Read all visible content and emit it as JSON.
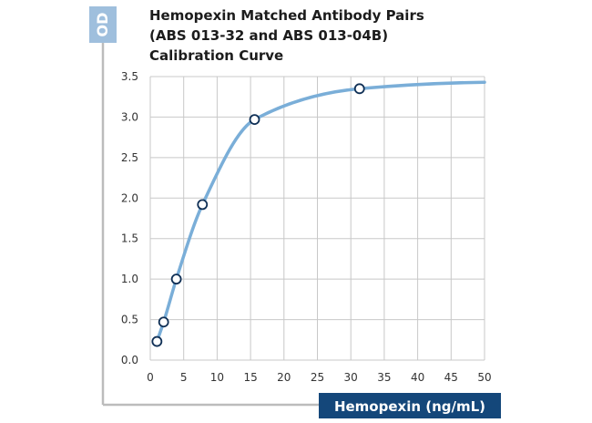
{
  "colors": {
    "ylabel_box": "#9fbfdd",
    "xlabel_box": "#14477a",
    "curve": "#7aaed8",
    "marker_stroke": "#0f2f55",
    "grid": "#c8c8c8",
    "frame": "#bcbcbc"
  },
  "chart_data": {
    "type": "scatter",
    "title": "Hemopexin Matched Antibody Pairs (ABS 013-32 and ABS 013-04B) Calibration Curve",
    "title_lines": [
      "Hemopexin Matched Antibody Pairs",
      "(ABS 013-32 and ABS 013-04B)",
      "Calibration Curve"
    ],
    "xlabel": "Hemopexin (ng/mL)",
    "ylabel": "OD",
    "xlim": [
      0,
      50
    ],
    "ylim": [
      0,
      3.5
    ],
    "x_ticks": [
      0,
      5,
      10,
      15,
      20,
      25,
      30,
      35,
      40,
      45,
      50
    ],
    "y_ticks": [
      0,
      0.5,
      1.0,
      1.5,
      2.0,
      2.5,
      3.0,
      3.5
    ],
    "y_tick_labels": [
      "0.0",
      "0.5",
      "1.0",
      "1.5",
      "2.0",
      "2.5",
      "3.0",
      "3.5"
    ],
    "x_tick_labels": [
      "0",
      "5",
      "10",
      "15",
      "20",
      "25",
      "30",
      "35",
      "40",
      "45",
      "50"
    ],
    "grid": true,
    "series": [
      {
        "points": [
          {
            "x": 1.0,
            "y": 0.23
          },
          {
            "x": 2.0,
            "y": 0.47
          },
          {
            "x": 3.9,
            "y": 1.0
          },
          {
            "x": 7.8,
            "y": 1.92
          },
          {
            "x": 15.6,
            "y": 2.97
          },
          {
            "x": 31.3,
            "y": 3.35
          }
        ],
        "fit_curve": true
      }
    ]
  }
}
